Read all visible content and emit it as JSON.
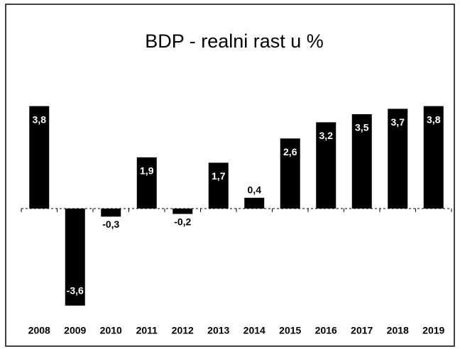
{
  "chart_data": {
    "type": "bar",
    "title": "BDP - realni rast u %",
    "categories": [
      "2008",
      "2009",
      "2010",
      "2011",
      "2012",
      "2013",
      "2014",
      "2015",
      "2016",
      "2017",
      "2018",
      "2019"
    ],
    "values": [
      3.8,
      -3.6,
      -0.3,
      1.9,
      -0.2,
      1.7,
      0.4,
      2.6,
      3.2,
      3.5,
      3.7,
      3.8
    ],
    "value_labels": [
      "3,8",
      "-3,6",
      "-0,3",
      "1,9",
      "-0,2",
      "1,7",
      "0,4",
      "2,6",
      "3,2",
      "3,5",
      "3,7",
      "3,8"
    ],
    "color": "#000000",
    "ylim": [
      -4,
      4
    ]
  }
}
